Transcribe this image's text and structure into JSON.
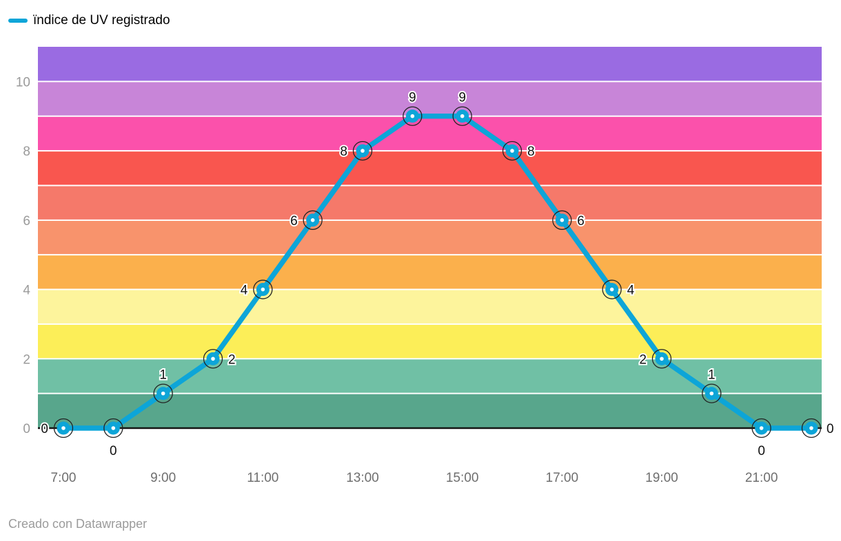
{
  "legend": {
    "label": "ïndice de UV registrado",
    "color": "#0da5d8"
  },
  "footer": {
    "credit": "Creado con Datawrapper"
  },
  "chart_data": {
    "type": "line",
    "title": "",
    "xlabel": "",
    "ylabel": "",
    "series_name": "ïndice de UV registrado",
    "line_color": "#0da5d8",
    "x_hours": [
      7,
      8,
      9,
      10,
      11,
      12,
      13,
      14,
      15,
      16,
      17,
      18,
      19,
      20,
      21,
      22
    ],
    "values": [
      0,
      0,
      1,
      2,
      4,
      6,
      8,
      9,
      9,
      8,
      6,
      4,
      2,
      1,
      0,
      0
    ],
    "label_positions": [
      "left",
      "below",
      "above",
      "right",
      "left",
      "left",
      "left",
      "above",
      "above",
      "right",
      "right",
      "right",
      "left",
      "above",
      "below",
      "right"
    ],
    "x_tick_hours": [
      7,
      9,
      11,
      13,
      15,
      17,
      19,
      21
    ],
    "x_tick_labels": [
      "7:00",
      "9:00",
      "11:00",
      "13:00",
      "15:00",
      "17:00",
      "19:00",
      "21:00"
    ],
    "y_ticks": [
      0,
      2,
      4,
      6,
      8,
      10
    ],
    "ylim": [
      0,
      11
    ],
    "grid": true,
    "legend_position": "top-left",
    "bands": [
      {
        "from": 0,
        "to": 1,
        "color": "#58a68c"
      },
      {
        "from": 1,
        "to": 2,
        "color": "#70c0a5"
      },
      {
        "from": 2,
        "to": 3,
        "color": "#fcee58"
      },
      {
        "from": 3,
        "to": 4,
        "color": "#fdf49c"
      },
      {
        "from": 4,
        "to": 5,
        "color": "#fbb04c"
      },
      {
        "from": 5,
        "to": 6,
        "color": "#f8936c"
      },
      {
        "from": 6,
        "to": 7,
        "color": "#f5796a"
      },
      {
        "from": 7,
        "to": 8,
        "color": "#f9564f"
      },
      {
        "from": 8,
        "to": 9,
        "color": "#fb51ab"
      },
      {
        "from": 9,
        "to": 10,
        "color": "#c885d8"
      },
      {
        "from": 10,
        "to": 11,
        "color": "#9a6be2"
      }
    ]
  }
}
